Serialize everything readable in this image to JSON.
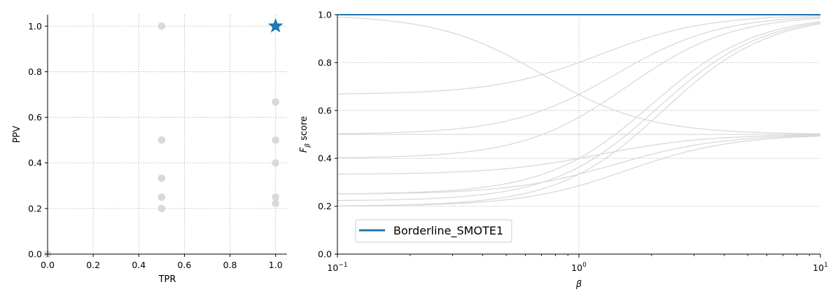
{
  "chart_data": [
    {
      "type": "scatter",
      "xlabel": "TPR",
      "ylabel": "PPV",
      "xlim": [
        0,
        1.05
      ],
      "ylim": [
        0,
        1.05
      ],
      "x_ticks": [
        "0.0",
        "0.2",
        "0.4",
        "0.6",
        "0.8",
        "1.0"
      ],
      "y_ticks": [
        "0.0",
        "0.2",
        "0.4",
        "0.6",
        "0.8",
        "1.0"
      ],
      "grid": true,
      "series": [
        {
          "color": "#d9d9d9",
          "marker": "circle",
          "points": [
            {
              "x": 0.0,
              "y": 0.0
            },
            {
              "x": 0.5,
              "y": 1.0
            },
            {
              "x": 0.5,
              "y": 0.5
            },
            {
              "x": 0.5,
              "y": 0.333
            },
            {
              "x": 0.5,
              "y": 0.25
            },
            {
              "x": 0.5,
              "y": 0.2
            },
            {
              "x": 1.0,
              "y": 0.667
            },
            {
              "x": 1.0,
              "y": 0.5
            },
            {
              "x": 1.0,
              "y": 0.4
            },
            {
              "x": 1.0,
              "y": 0.25
            },
            {
              "x": 1.0,
              "y": 0.222
            }
          ]
        },
        {
          "color": "#1f77b4",
          "marker": "star",
          "points": [
            {
              "x": 1.0,
              "y": 1.0
            }
          ]
        }
      ]
    },
    {
      "type": "line",
      "xlabel": "β",
      "ylabel_main": "F",
      "ylabel_sub": "β",
      "ylabel_rest": " score",
      "x_scale": "log",
      "xlim": [
        0.1,
        10
      ],
      "ylim": [
        0,
        1.0
      ],
      "x_ticks": [
        {
          "base": "10",
          "exp": "−1",
          "value": 0.1
        },
        {
          "base": "10",
          "exp": "0",
          "value": 1
        },
        {
          "base": "10",
          "exp": "1",
          "value": 10
        }
      ],
      "y_ticks": [
        "0.0",
        "0.2",
        "0.4",
        "0.6",
        "0.8",
        "1.0"
      ],
      "grid": true,
      "legend_position": "lower-left",
      "legend": [
        "Borderline_SMOTE1"
      ],
      "highlight_color": "#1f77b4",
      "background_color": "#d9d9d9",
      "series": [
        {
          "name": "Borderline_SMOTE1",
          "tpr": 1.0,
          "ppv": 1.0,
          "highlight": true
        },
        {
          "tpr": 0.5,
          "ppv": 1.0
        },
        {
          "tpr": 0.5,
          "ppv": 0.5
        },
        {
          "tpr": 0.5,
          "ppv": 0.333
        },
        {
          "tpr": 0.5,
          "ppv": 0.25
        },
        {
          "tpr": 0.5,
          "ppv": 0.2
        },
        {
          "tpr": 1.0,
          "ppv": 0.667
        },
        {
          "tpr": 1.0,
          "ppv": 0.5
        },
        {
          "tpr": 1.0,
          "ppv": 0.4
        },
        {
          "tpr": 1.0,
          "ppv": 0.25
        },
        {
          "tpr": 1.0,
          "ppv": 0.222
        },
        {
          "tpr": 1.0,
          "ppv": 0.2
        }
      ]
    }
  ]
}
